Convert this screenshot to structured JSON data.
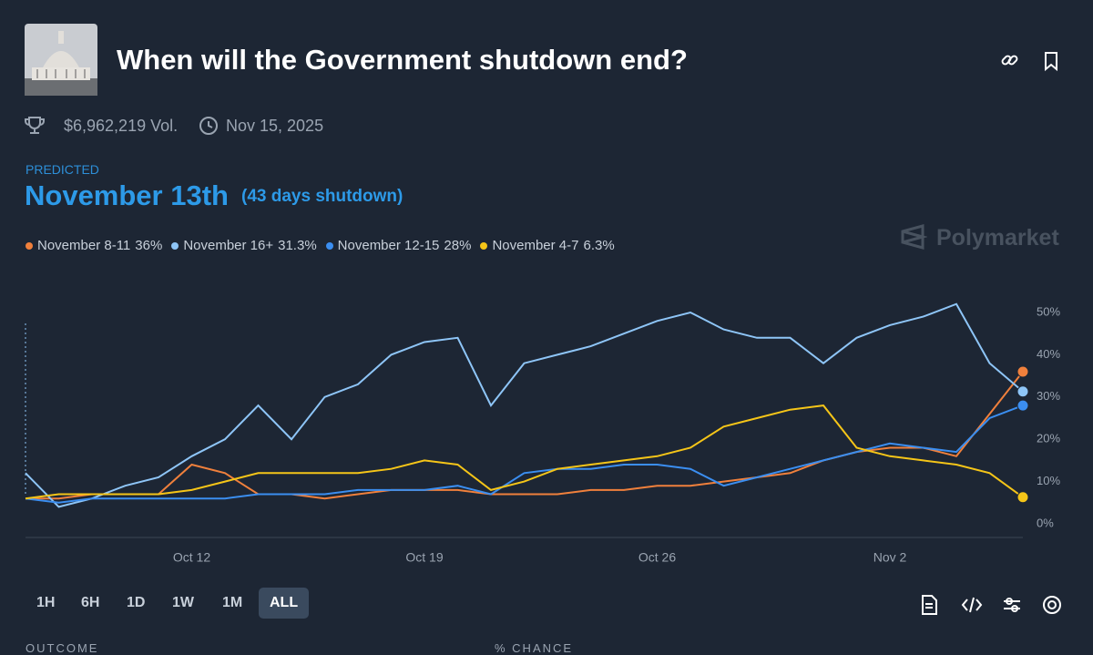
{
  "header": {
    "title": "When will the Government shutdown end?",
    "volume": "$6,962,219 Vol.",
    "end_date": "Nov 15, 2025"
  },
  "predicted": {
    "label": "PREDICTED",
    "value": "November 13th",
    "note": "(43 days shutdown)"
  },
  "brand": "Polymarket",
  "chart_data": {
    "type": "line",
    "categories": [
      null,
      null,
      null,
      null,
      null,
      "Oct 12",
      null,
      null,
      null,
      null,
      null,
      null,
      "Oct 19",
      null,
      null,
      null,
      null,
      null,
      null,
      "Oct 26",
      null,
      null,
      null,
      null,
      null,
      null,
      "Nov 2",
      null,
      null,
      null,
      null
    ],
    "series": [
      {
        "name": "November 8-11",
        "current_label": "36%",
        "color": "#f0803c",
        "values": [
          6,
          6,
          7,
          7,
          7,
          14,
          12,
          7,
          7,
          6,
          7,
          8,
          8,
          8,
          7,
          7,
          7,
          8,
          8,
          9,
          9,
          10,
          11,
          12,
          15,
          17,
          18,
          18,
          16,
          26,
          36
        ]
      },
      {
        "name": "November 16+",
        "current_label": "31.3%",
        "color": "#8ec5f7",
        "values": [
          12,
          4,
          6,
          9,
          11,
          16,
          20,
          28,
          20,
          30,
          33,
          40,
          43,
          44,
          28,
          38,
          40,
          42,
          45,
          48,
          50,
          46,
          44,
          44,
          38,
          44,
          47,
          49,
          52,
          38,
          31.3
        ]
      },
      {
        "name": "November 12-15",
        "current_label": "28%",
        "color": "#3b8ef0",
        "values": [
          6,
          5,
          6,
          6,
          6,
          6,
          6,
          7,
          7,
          7,
          8,
          8,
          8,
          9,
          7,
          12,
          13,
          13,
          14,
          14,
          13,
          9,
          11,
          13,
          15,
          17,
          19,
          18,
          17,
          25,
          28
        ]
      },
      {
        "name": "November 4-7",
        "current_label": "6.3%",
        "color": "#f5c518",
        "values": [
          6,
          7,
          7,
          7,
          7,
          8,
          10,
          12,
          12,
          12,
          12,
          13,
          15,
          14,
          8,
          10,
          13,
          14,
          15,
          16,
          18,
          23,
          25,
          27,
          28,
          18,
          16,
          15,
          14,
          12,
          6.3
        ]
      }
    ],
    "ylim": [
      0,
      56
    ],
    "yticks": [
      {
        "value": 0,
        "label": "0%"
      },
      {
        "value": 10,
        "label": "10%"
      },
      {
        "value": 20,
        "label": "20%"
      },
      {
        "value": 30,
        "label": "30%"
      },
      {
        "value": 40,
        "label": "40%"
      },
      {
        "value": 50,
        "label": "50%"
      }
    ],
    "grid": false
  },
  "ranges": [
    "1H",
    "6H",
    "1D",
    "1W",
    "1M",
    "ALL"
  ],
  "table_headers": [
    "OUTCOME",
    "% CHANCE"
  ]
}
